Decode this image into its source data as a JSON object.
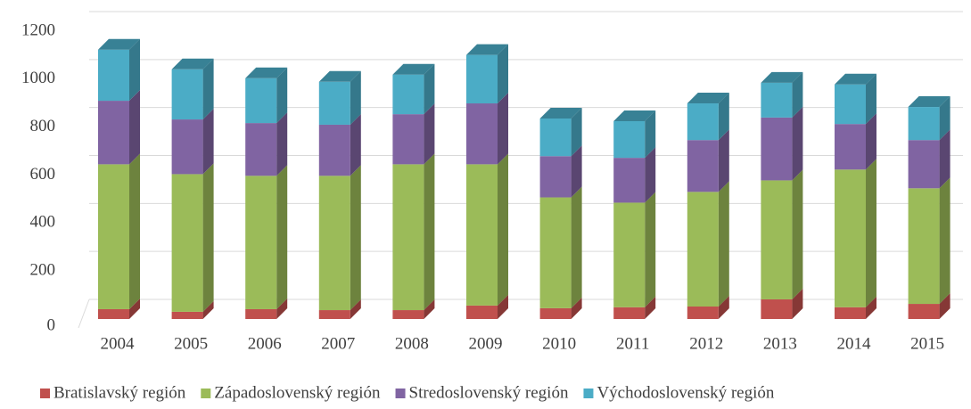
{
  "chart_data": {
    "type": "bar3d_stacked",
    "categories": [
      "2004",
      "2005",
      "2006",
      "2007",
      "2008",
      "2009",
      "2010",
      "2011",
      "2012",
      "2013",
      "2014",
      "2015"
    ],
    "series": [
      {
        "name": "Bratislavský región",
        "color": "#c0504d",
        "values": [
          41,
          30,
          41,
          37,
          37,
          56,
          45,
          49,
          52,
          82,
          49,
          63
        ]
      },
      {
        "name": "Západoslovenský región",
        "color": "#9bbb59",
        "values": [
          604,
          574,
          556,
          560,
          608,
          589,
          462,
          436,
          478,
          496,
          574,
          482
        ]
      },
      {
        "name": "Stredoslovenský región",
        "color": "#8064a2",
        "values": [
          265,
          228,
          220,
          213,
          209,
          254,
          172,
          187,
          216,
          262,
          190,
          201
        ]
      },
      {
        "name": "Východoslovenský región",
        "color": "#4bacc6",
        "values": [
          213,
          209,
          187,
          179,
          165,
          202,
          157,
          153,
          153,
          145,
          165,
          138
        ]
      }
    ],
    "ylim": [
      0,
      1200
    ],
    "yticks": [
      0,
      200,
      400,
      600,
      800,
      1000,
      1200
    ],
    "grid": true,
    "legend": "bottom"
  }
}
